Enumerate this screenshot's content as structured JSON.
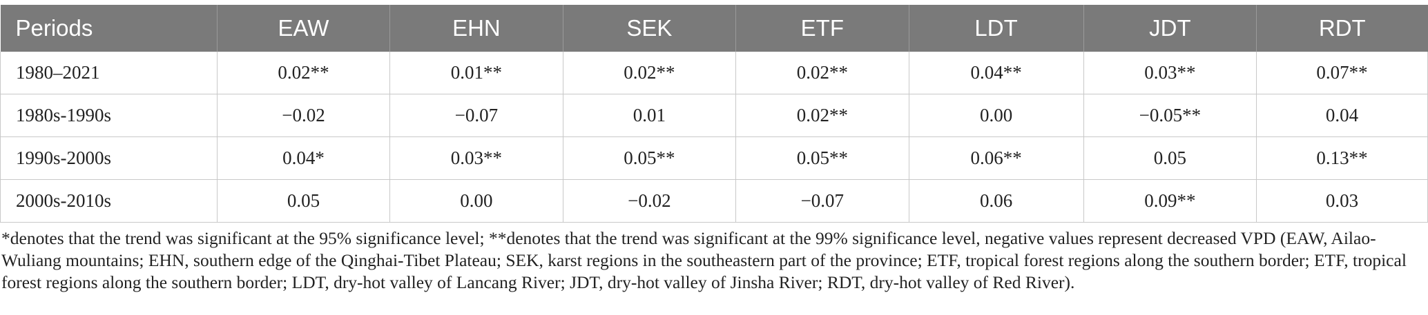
{
  "table": {
    "headers": [
      "Periods",
      "EAW",
      "EHN",
      "SEK",
      "ETF",
      "LDT",
      "JDT",
      "RDT"
    ],
    "rows": [
      [
        "1980–2021",
        "0.02**",
        "0.01**",
        "0.02**",
        "0.02**",
        "0.04**",
        "0.03**",
        "0.07**"
      ],
      [
        "1980s-1990s",
        "−0.02",
        "−0.07",
        "0.01",
        "0.02**",
        "0.00",
        "−0.05**",
        "0.04"
      ],
      [
        "1990s-2000s",
        "0.04*",
        "0.03**",
        "0.05**",
        "0.05**",
        "0.06**",
        "0.05",
        "0.13**"
      ],
      [
        "2000s-2010s",
        "0.05",
        "0.00",
        "−0.02",
        "−0.07",
        "0.06",
        "0.09**",
        "0.03"
      ]
    ]
  },
  "footnote": "*denotes that the trend was significant at the 95% significance level; **denotes that the trend was significant at the 99% significance level, negative values represent decreased VPD (EAW, Ailao-Wuliang mountains; EHN, southern edge of the Qinghai-Tibet Plateau; SEK, karst regions in the southeastern part of the province; ETF, tropical forest regions along the southern border; ETF, tropical forest regions along the southern border; LDT, dry-hot valley of Lancang River; JDT, dry-hot valley of Jinsha River; RDT, dry-hot valley of Red River)."
}
